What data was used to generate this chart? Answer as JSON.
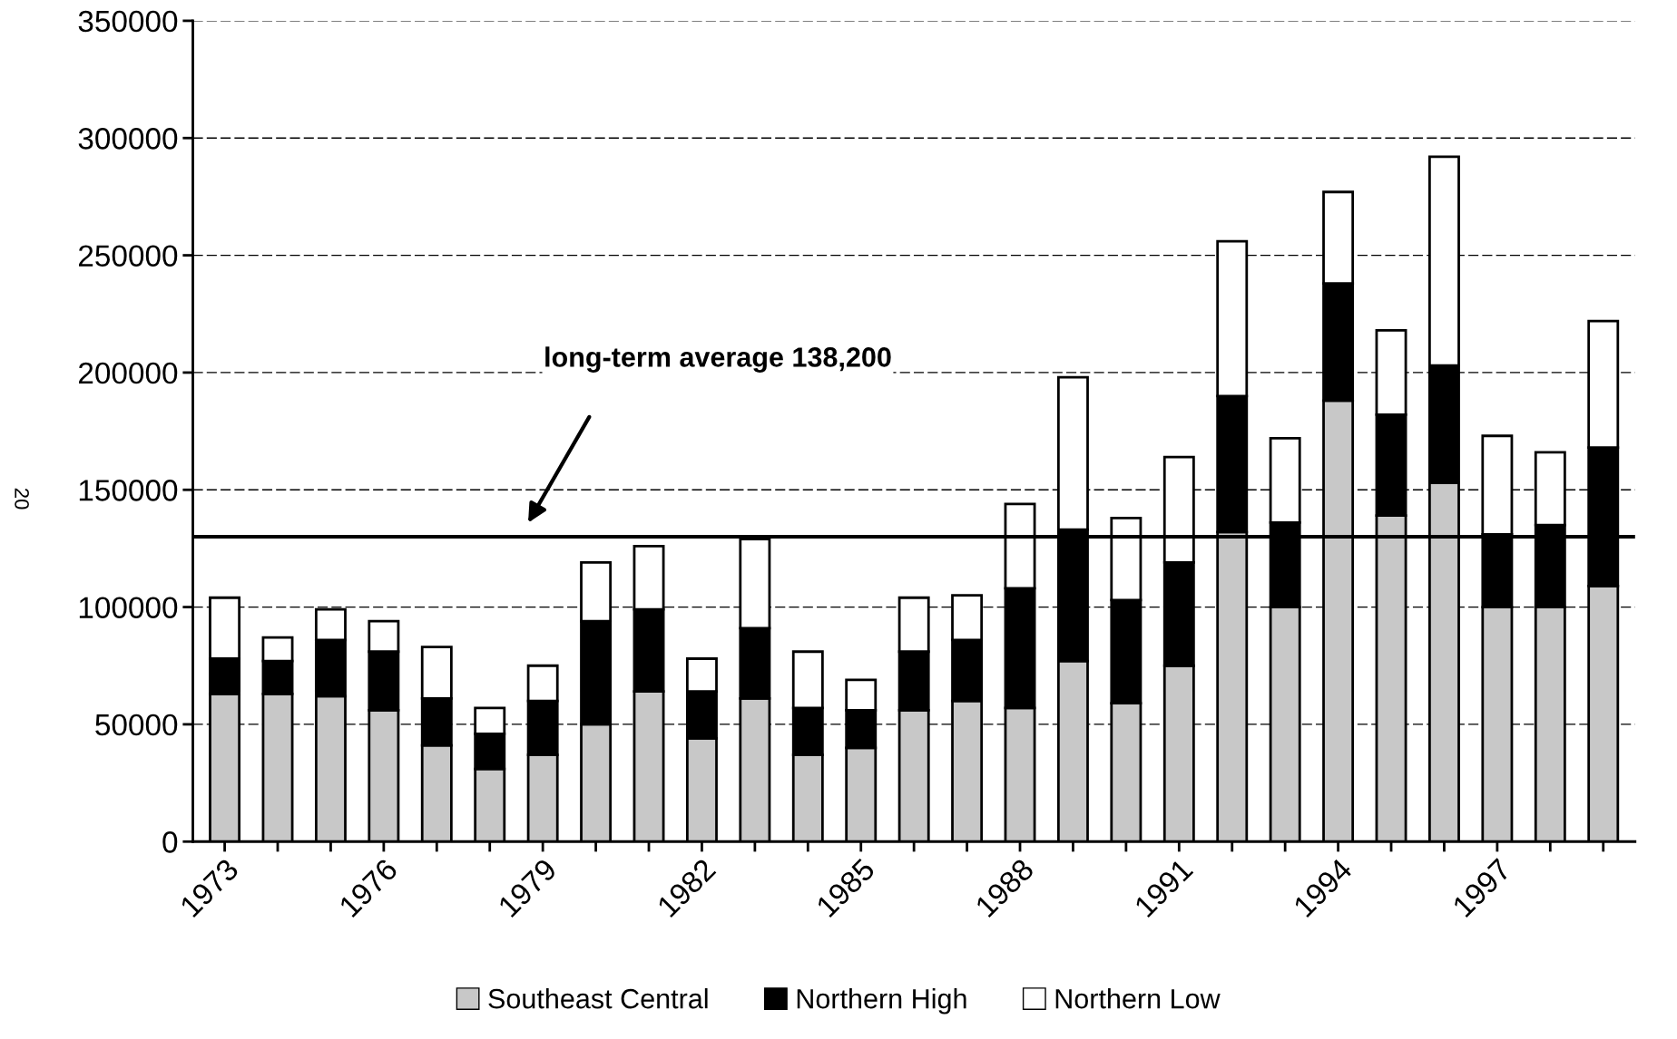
{
  "chart_data": {
    "type": "bar",
    "stacked": true,
    "categories": [
      "1973",
      null,
      null,
      "1976",
      null,
      null,
      "1979",
      null,
      null,
      "1982",
      null,
      null,
      "1985",
      null,
      null,
      "1988",
      null,
      null,
      "1991",
      null,
      null,
      "1994",
      null,
      null,
      "1997",
      null,
      null
    ],
    "series": [
      {
        "name": "Southeast Central",
        "color": "#c8c8c8",
        "values": [
          63000,
          63000,
          62000,
          56000,
          41000,
          31000,
          37000,
          50000,
          64000,
          44000,
          61000,
          37000,
          40000,
          56000,
          60000,
          57000,
          77000,
          59000,
          75000,
          132000,
          100000,
          188000,
          139000,
          153000,
          100000,
          100000,
          109000
        ]
      },
      {
        "name": "Northern High",
        "color": "#000000",
        "values": [
          15000,
          14000,
          24000,
          25000,
          20000,
          15000,
          23000,
          44000,
          35000,
          20000,
          30000,
          20000,
          16000,
          25000,
          26000,
          51000,
          56000,
          44000,
          44000,
          58000,
          36000,
          50000,
          43000,
          50000,
          31000,
          35000,
          59000
        ]
      },
      {
        "name": "Northern Low",
        "color": "#ffffff",
        "values": [
          26000,
          10000,
          13000,
          13000,
          22000,
          11000,
          15000,
          25000,
          27000,
          14000,
          38000,
          24000,
          13000,
          23000,
          19000,
          36000,
          65000,
          35000,
          45000,
          66000,
          36000,
          39000,
          36000,
          89000,
          42000,
          31000,
          54000
        ]
      }
    ],
    "ylim": [
      0,
      350000
    ],
    "yticks": [
      0,
      50000,
      100000,
      150000,
      200000,
      250000,
      300000,
      350000
    ],
    "grid": "y",
    "legend": "bottom",
    "ref_lines": [
      {
        "axis": "y",
        "value": 130000,
        "color": "#000000"
      }
    ],
    "annotations": [
      "long-term average 138,200",
      "20"
    ]
  }
}
